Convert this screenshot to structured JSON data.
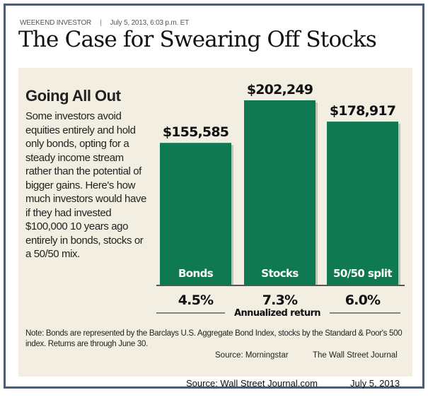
{
  "header": {
    "kicker": "WEEKEND INVESTOR",
    "separator": "|",
    "dateline": "July 5, 2013, 6:03 p.m. ET",
    "title": "The Case for Swearing Off Stocks"
  },
  "panel": {
    "title": "Going All Out",
    "description": "Some investors avoid equities entirely and hold only bonds, opting for a steady income stream rather than the potential of bigger gains. Here's how much investors would have if they had invested $100,000 10 years ago entirely in bonds, stocks or a 50/50 mix.",
    "note": "Note: Bonds are represented by the Barclays U.S. Aggregate Bond Index, stocks by the Standard & Poor's 500 index. Returns are through June 30.",
    "source": "Source: Morningstar",
    "credit": "The Wall Street Journal"
  },
  "footer": {
    "source": "Source: Wall Street Journal.com",
    "date": "July 5, 2013"
  },
  "chart_data": {
    "type": "bar",
    "categories": [
      "Bonds",
      "Stocks",
      "50/50 split"
    ],
    "values": [
      155585,
      202249,
      178917
    ],
    "data_labels": [
      "$155,585",
      "$202,249",
      "$178,917"
    ],
    "returns": [
      "4.5%",
      "7.3%",
      "6.0%"
    ],
    "returns_label": "Annualized return",
    "ylim": [
      0,
      202249
    ],
    "bar_color": "#0f7a52",
    "grid": false
  }
}
